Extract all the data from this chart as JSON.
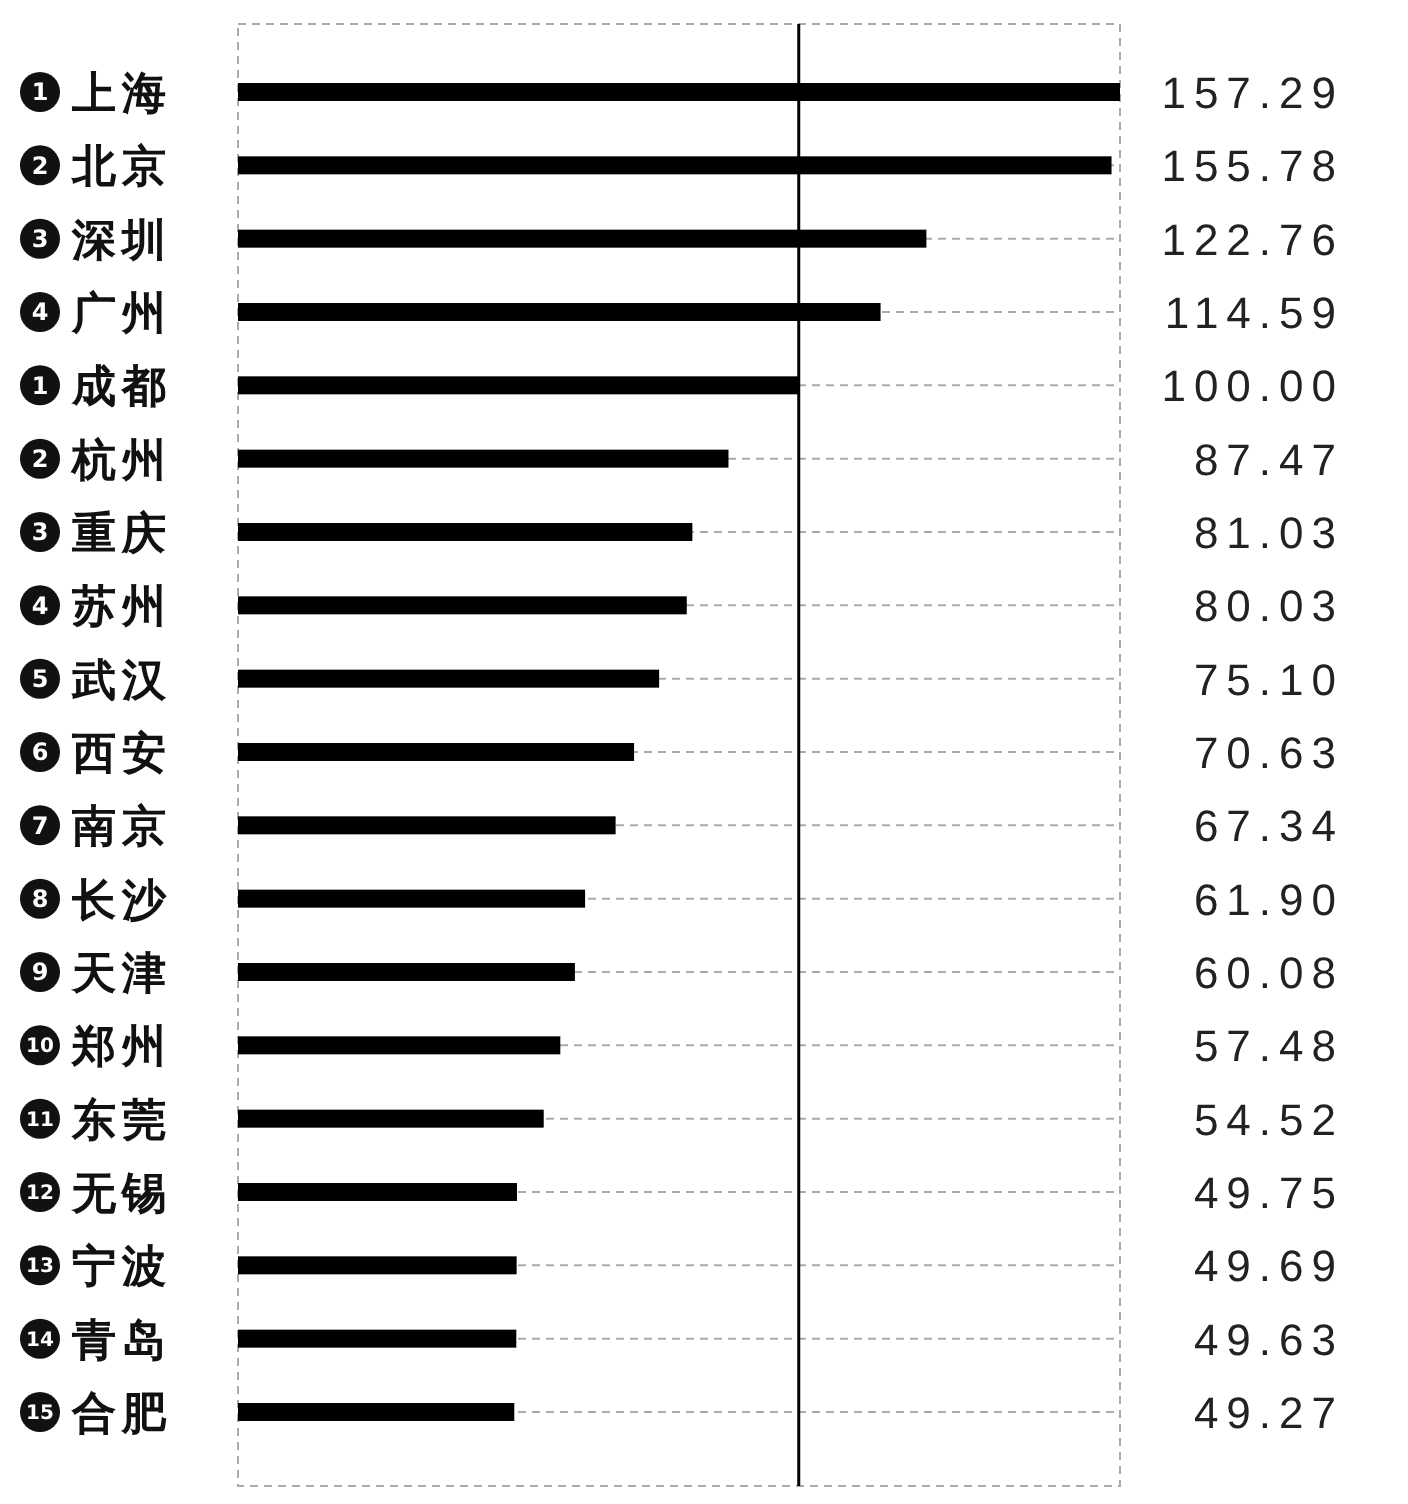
{
  "chart_data": {
    "type": "bar",
    "orientation": "horizontal",
    "categories": [
      "1 上海",
      "2 北京",
      "3 深圳",
      "4 广州",
      "1 成都",
      "2 杭州",
      "3 重庆",
      "4 苏州",
      "5 武汉",
      "6 西安",
      "7 南京",
      "8 长沙",
      "9 天津",
      "10 郑州",
      "11 东莞",
      "12 无锡",
      "13 宁波",
      "14 青岛",
      "15 合肥"
    ],
    "values": [
      157.29,
      155.78,
      122.76,
      114.59,
      100.0,
      87.47,
      81.03,
      80.03,
      75.1,
      70.63,
      67.34,
      61.9,
      60.08,
      57.48,
      54.52,
      49.75,
      49.69,
      49.63,
      49.27
    ],
    "value_labels": [
      "157.29",
      "155.78",
      "122.76",
      "114.59",
      "100.00",
      "87.47",
      "81.03",
      "80.03",
      "75.10",
      "70.63",
      "67.34",
      "61.90",
      "60.08",
      "57.48",
      "54.52",
      "49.75",
      "49.69",
      "49.63",
      "49.27"
    ],
    "color": "#000000",
    "grid": "y",
    "ref_lines": [
      {
        "axis": "x",
        "value": 100,
        "color": "#000000"
      }
    ]
  }
}
